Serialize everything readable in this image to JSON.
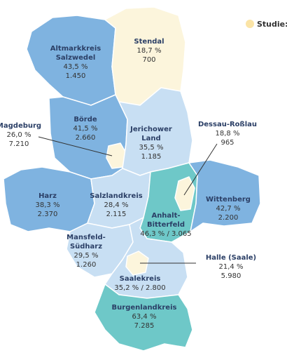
{
  "legend": {
    "label": "Studie: S"
  },
  "regions": [
    {
      "name_lines": [
        "Altmarkkreis",
        "Salzwedel"
      ],
      "values": [
        "43,5 %",
        "1.450"
      ]
    },
    {
      "name_lines": [
        "Stendal"
      ],
      "values": [
        "18,7 %",
        "700"
      ]
    },
    {
      "name_lines": [
        "Börde"
      ],
      "values": [
        "41,5 %",
        "2.660"
      ]
    },
    {
      "name_lines": [
        "Magdeburg"
      ],
      "values": [
        "26,0 %",
        "7.210"
      ]
    },
    {
      "name_lines": [
        "Jerichower",
        "Land"
      ],
      "values": [
        "35,5 %",
        "1.185"
      ]
    },
    {
      "name_lines": [
        "Dessau-Roßlau"
      ],
      "values": [
        "18,8 %",
        "965"
      ]
    },
    {
      "name_lines": [
        "Harz"
      ],
      "values": [
        "38,3 %",
        "2.370"
      ]
    },
    {
      "name_lines": [
        "Salzlandkreis"
      ],
      "values": [
        "28,4 %",
        "2.115"
      ]
    },
    {
      "name_lines": [
        "Wittenberg"
      ],
      "values": [
        "42,7 %",
        "2.200"
      ]
    },
    {
      "name_lines": [
        "Anhalt-",
        "Bitterfeld"
      ],
      "values": [
        "46,3 % / 3.065"
      ]
    },
    {
      "name_lines": [
        "Mansfeld-",
        "Südharz"
      ],
      "values": [
        "29,5 %",
        "1.260"
      ]
    },
    {
      "name_lines": [
        "Halle (Saale)"
      ],
      "values": [
        "21,4 %",
        "5.980"
      ]
    },
    {
      "name_lines": [
        "Saalekreis"
      ],
      "values": [
        "35,2 % / 2.800"
      ]
    },
    {
      "name_lines": [
        "Burgenlandkreis"
      ],
      "values": [
        "63,4 %",
        "7.285"
      ]
    }
  ]
}
